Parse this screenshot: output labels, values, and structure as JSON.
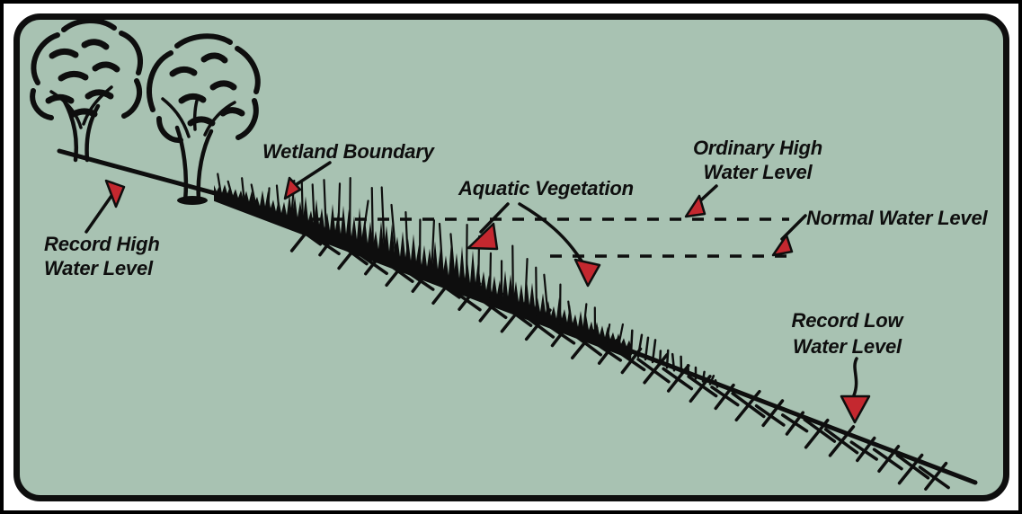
{
  "diagram": {
    "description": "Wetland cross-section water levels diagram",
    "labels": {
      "record_high": {
        "line1": "Record High",
        "line2": "Water Level"
      },
      "wetland_boundary": {
        "text": "Wetland Boundary"
      },
      "aquatic_vegetation": {
        "text": "Aquatic Vegetation"
      },
      "ordinary_high": {
        "line1": "Ordinary High",
        "line2": "Water Level"
      },
      "normal": {
        "text": "Normal Water Level"
      },
      "record_low": {
        "line1": "Record Low",
        "line2": "Water Level"
      }
    },
    "colors": {
      "background": "#a8c2b2",
      "ink": "#0e0e0e",
      "red": "#c4282f",
      "frame": "#000000",
      "mat": "#ffffff"
    }
  }
}
